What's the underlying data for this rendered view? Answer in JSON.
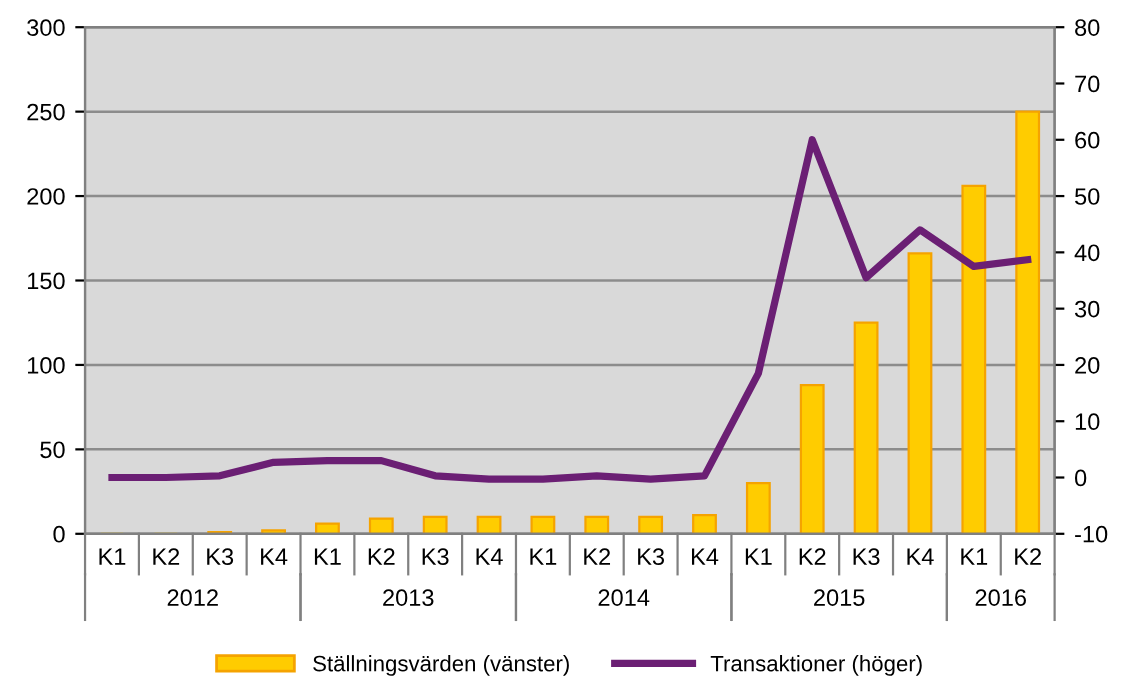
{
  "chart_data": {
    "type": "bar",
    "categories": [
      "K1",
      "K2",
      "K3",
      "K4",
      "K1",
      "K2",
      "K3",
      "K4",
      "K1",
      "K2",
      "K3",
      "K4",
      "K1",
      "K2",
      "K3",
      "K4",
      "K1",
      "K2"
    ],
    "series": [
      {
        "name": "Ställningsvärden (vänster)",
        "color": "#ffcc00",
        "values": [
          0,
          0,
          1,
          2,
          6,
          9,
          10,
          10,
          10,
          10,
          10,
          11,
          30,
          88,
          125,
          166,
          206,
          250
        ]
      },
      {
        "name": "Transaktioner (höger)",
        "type": "line",
        "axis": "y2",
        "color": "#6b1f74",
        "values": [
          0,
          0,
          0.3,
          2.7,
          3,
          3,
          0.3,
          -0.3,
          -0.3,
          0.3,
          -0.3,
          0.3,
          18.5,
          60,
          35.5,
          44,
          37.5,
          38.7
        ]
      }
    ],
    "ylim": [
      0,
      300
    ],
    "yticks": [
      0,
      50,
      100,
      150,
      200,
      250,
      300
    ],
    "y2lim": [
      -10,
      80
    ],
    "y2ticks": [
      -10,
      0,
      10,
      20,
      30,
      40,
      50,
      60,
      70,
      80
    ],
    "annotations": [
      "2012",
      "2013",
      "2014",
      "2015",
      "2016"
    ],
    "grid": "y",
    "legend": "bottom",
    "marker": "none",
    "line_style": "solid"
  }
}
